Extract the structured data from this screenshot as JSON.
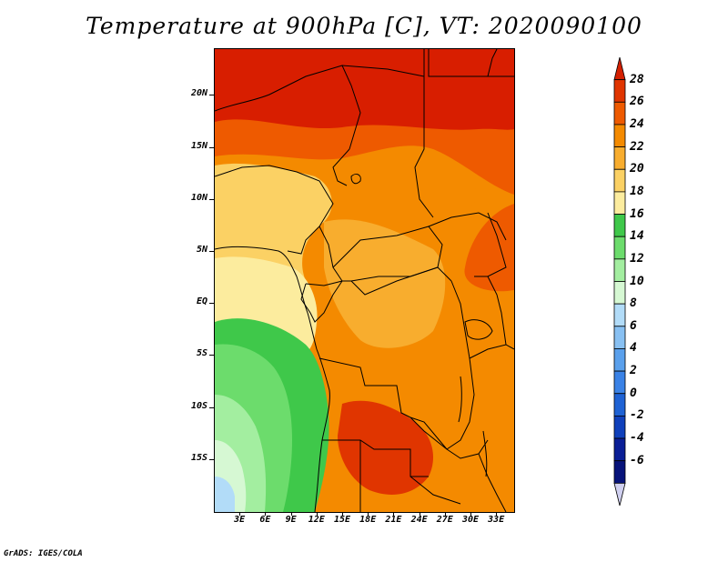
{
  "title": "Temperature at 900hPa [C], VT: 2020090100",
  "credit": "GrADS: IGES/COLA",
  "lat_labels": [
    {
      "text": "20N",
      "lat": 20
    },
    {
      "text": "15N",
      "lat": 15
    },
    {
      "text": "10N",
      "lat": 10
    },
    {
      "text": "5N",
      "lat": 5
    },
    {
      "text": "EQ",
      "lat": 0
    },
    {
      "text": "5S",
      "lat": -5
    },
    {
      "text": "10S",
      "lat": -10
    },
    {
      "text": "15S",
      "lat": -15
    }
  ],
  "lon_labels": [
    {
      "text": "3E",
      "lon": 3
    },
    {
      "text": "6E",
      "lon": 6
    },
    {
      "text": "9E",
      "lon": 9
    },
    {
      "text": "12E",
      "lon": 12
    },
    {
      "text": "15E",
      "lon": 15
    },
    {
      "text": "18E",
      "lon": 18
    },
    {
      "text": "21E",
      "lon": 21
    },
    {
      "text": "24E",
      "lon": 24
    },
    {
      "text": "27E",
      "lon": 27
    },
    {
      "text": "30E",
      "lon": 30
    },
    {
      "text": "33E",
      "lon": 33
    }
  ],
  "colorbar": {
    "labels": [
      "28",
      "26",
      "24",
      "22",
      "20",
      "18",
      "16",
      "14",
      "12",
      "10",
      "8",
      "6",
      "4",
      "2",
      "0",
      "-2",
      "-4",
      "-6"
    ],
    "colors_top_to_bottom": [
      "#d42000",
      "#e03500",
      "#ee5a00",
      "#f48a00",
      "#f8ad2e",
      "#fbd164",
      "#fcec9e",
      "#3fc84a",
      "#6cdc6c",
      "#a3eea0",
      "#d6f8d3",
      "#b2dcf8",
      "#88c0f2",
      "#5aa0ec",
      "#3a82e6",
      "#1e62d4",
      "#0f40bb",
      "#0a1e96",
      "#07137a",
      "#d0d0f0"
    ]
  },
  "map": {
    "lon_range": [
      0,
      35
    ],
    "lat_range": [
      -20,
      24.5
    ],
    "fields": [
      {
        "name": "sahara",
        "color": "#d81e00"
      },
      {
        "name": "sahel",
        "color": "#ee5a00"
      },
      {
        "name": "savanna-north",
        "color": "#f48a00"
      },
      {
        "name": "west-coast",
        "color": "#fbd164"
      },
      {
        "name": "congo-basin",
        "color": "#f8ad2e"
      },
      {
        "name": "gabon-coast",
        "color": "#fcec9e"
      },
      {
        "name": "atlantic-south",
        "color": "#3fc84a"
      },
      {
        "name": "atlantic-far-south",
        "color": "#6cdc6c"
      },
      {
        "name": "cold-sea-1",
        "color": "#a3eea0"
      },
      {
        "name": "cold-sea-2",
        "color": "#d6f8d3"
      },
      {
        "name": "cold-sea-3",
        "color": "#b2dcf8"
      },
      {
        "name": "zambia-hot",
        "color": "#e03500"
      },
      {
        "name": "east-hot",
        "color": "#ee5a00"
      }
    ]
  }
}
